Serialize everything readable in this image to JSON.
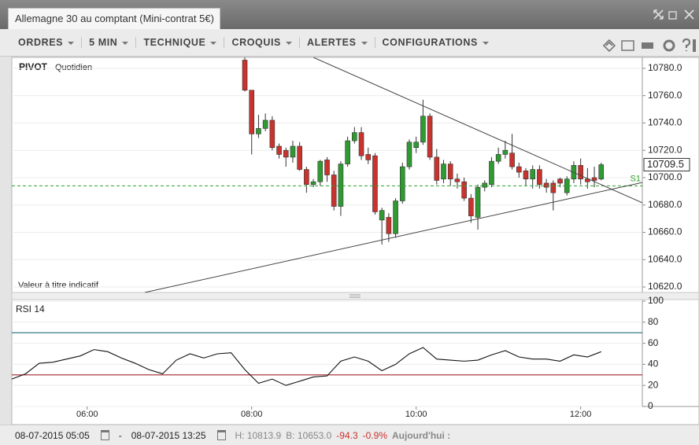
{
  "window": {
    "tab_title": "Allemagne 30 au comptant (Mini-contrat 5€)"
  },
  "toolbar": {
    "items": [
      "ORDRES",
      "5 MIN",
      "TECHNIQUE",
      "CROQUIS",
      "ALERTES",
      "CONFIGURATIONS"
    ]
  },
  "chart_data": [
    {
      "type": "candlestick",
      "legend": "PIVOT",
      "legend_sub": "Quotidien",
      "note": "Valeur à titre indicatif",
      "up_color": "#2f9a32",
      "down_color": "#c8332e",
      "xlim": [
        "05:05",
        "12:45"
      ],
      "ylim": [
        10616,
        10788
      ],
      "yticks": [
        {
          "value": 10620,
          "label": "10620.0"
        },
        {
          "value": 10640,
          "label": "10640.0"
        },
        {
          "value": 10660,
          "label": "10660.0"
        },
        {
          "value": 10680,
          "label": "10680.0"
        },
        {
          "value": 10700,
          "label": "10700.0"
        },
        {
          "value": 10720,
          "label": "10720.0"
        },
        {
          "value": 10740,
          "label": "10740.0"
        },
        {
          "value": 10760,
          "label": "10760.0"
        },
        {
          "value": 10780,
          "label": "10780.0"
        }
      ],
      "grid": true,
      "x": [
        "07:55",
        "08:00",
        "08:05",
        "08:10",
        "08:15",
        "08:20",
        "08:25",
        "08:30",
        "08:35",
        "08:40",
        "08:45",
        "08:50",
        "08:55",
        "09:00",
        "09:05",
        "09:10",
        "09:15",
        "09:20",
        "09:25",
        "09:30",
        "09:35",
        "09:40",
        "09:45",
        "09:50",
        "09:55",
        "10:00",
        "10:05",
        "10:10",
        "10:15",
        "10:20",
        "10:25",
        "10:30",
        "10:35",
        "10:40",
        "10:45",
        "10:50",
        "10:55",
        "11:00",
        "11:05",
        "11:10",
        "11:15",
        "11:20",
        "11:25",
        "11:30",
        "11:35",
        "11:40",
        "11:45",
        "11:50",
        "11:55",
        "12:00",
        "12:05",
        "12:10",
        "12:15"
      ],
      "open": [
        10786,
        10764,
        10732,
        10736,
        10742,
        10723,
        10720,
        10715,
        10723,
        10706,
        10695,
        10697,
        10713,
        10702,
        10679,
        10710,
        10727,
        10733,
        10717,
        10716,
        10669,
        10671,
        10659,
        10683,
        10708,
        10722,
        10726,
        10745,
        10715,
        10699,
        10710,
        10699,
        10697,
        10685,
        10671,
        10693,
        10695,
        10712,
        10717,
        10718,
        10708,
        10705,
        10699,
        10706,
        10696,
        10696,
        10699,
        10689,
        10699,
        10709,
        10699,
        10700,
        10699
      ],
      "high": [
        10788,
        10764,
        10746,
        10747,
        10745,
        10725,
        10722,
        10727,
        10726,
        10708,
        10699,
        10713,
        10715,
        10705,
        10712,
        10730,
        10737,
        10737,
        10722,
        10718,
        10678,
        10674,
        10685,
        10711,
        10728,
        10730,
        10757,
        10747,
        10721,
        10713,
        10712,
        10703,
        10700,
        10688,
        10695,
        10698,
        10715,
        10722,
        10727,
        10732,
        10711,
        10707,
        10709,
        10709,
        10699,
        10698,
        10700,
        10701,
        10712,
        10714,
        10707,
        10708,
        10711
      ],
      "low": [
        10763,
        10717,
        10729,
        10734,
        10720,
        10714,
        10708,
        10711,
        10705,
        10689,
        10693,
        10694,
        10697,
        10676,
        10672,
        10708,
        10725,
        10713,
        10710,
        10673,
        10651,
        10653,
        10656,
        10681,
        10706,
        10718,
        10724,
        10713,
        10695,
        10696,
        10694,
        10692,
        10683,
        10667,
        10662,
        10690,
        10693,
        10710,
        10714,
        10706,
        10700,
        10694,
        10692,
        10692,
        10689,
        10676,
        10693,
        10687,
        10696,
        10695,
        10692,
        10693,
        10698
      ],
      "close": [
        10764,
        10732,
        10736,
        10742,
        10722,
        10717,
        10715,
        10723,
        10706,
        10695,
        10697,
        10712,
        10702,
        10679,
        10710,
        10727,
        10733,
        10716,
        10713,
        10675,
        10676,
        10659,
        10683,
        10708,
        10726,
        10726,
        10745,
        10715,
        10698,
        10710,
        10699,
        10697,
        10685,
        10672,
        10693,
        10696,
        10712,
        10717,
        10720,
        10708,
        10704,
        10699,
        10706,
        10695,
        10693,
        10689,
        10696,
        10699,
        10709,
        10699,
        10697,
        10698,
        10709.5
      ],
      "last_price": 10709.5,
      "pivot_lines": [
        {
          "name": "S1",
          "value": 10694,
          "color": "#2fa12f"
        }
      ],
      "trendlines": [
        {
          "x": [
            "08:45",
            "12:45"
          ],
          "y": [
            10788,
            10681.6
          ],
          "color": "#444444"
        },
        {
          "x": [
            "06:42",
            "12:45"
          ],
          "y": [
            10616,
            10696.5
          ],
          "color": "#444444"
        }
      ]
    },
    {
      "type": "line",
      "title": "RSI 14",
      "color": "#111111",
      "xlim": [
        "05:05",
        "12:45"
      ],
      "ylim": [
        0,
        100
      ],
      "yticks": [
        0,
        20,
        40,
        60,
        80,
        100
      ],
      "xticks": [
        "06:00",
        "08:00",
        "10:00",
        "12:00"
      ],
      "grid": true,
      "bands": [
        {
          "value": 70,
          "color": "#1f6f78"
        },
        {
          "value": 30,
          "color": "#a0262b"
        }
      ],
      "x": [
        "05:05",
        "05:15",
        "05:25",
        "05:35",
        "05:45",
        "05:55",
        "06:05",
        "06:15",
        "06:25",
        "06:35",
        "06:45",
        "06:55",
        "07:05",
        "07:15",
        "07:25",
        "07:35",
        "07:45",
        "07:55",
        "08:05",
        "08:15",
        "08:25",
        "08:35",
        "08:45",
        "08:55",
        "09:05",
        "09:15",
        "09:25",
        "09:35",
        "09:45",
        "09:55",
        "10:05",
        "10:15",
        "10:25",
        "10:35",
        "10:45",
        "10:55",
        "11:05",
        "11:15",
        "11:25",
        "11:35",
        "11:45",
        "11:55",
        "12:05",
        "12:15"
      ],
      "values": [
        26,
        31,
        41,
        42,
        45,
        48,
        54,
        52,
        46,
        41,
        35,
        31,
        44,
        50,
        46,
        50,
        51,
        35,
        22,
        26,
        20,
        24,
        28,
        29,
        43,
        47,
        43,
        34,
        40,
        50,
        56,
        45,
        44,
        43,
        44,
        49,
        53,
        47,
        45,
        45,
        43,
        49,
        47,
        52
      ]
    }
  ],
  "status": {
    "start": "08-07-2015 05:05",
    "sep": "-",
    "end": "08-07-2015 13:25",
    "high": "H: 10813.9",
    "low": "B: 10653.0",
    "change": "-94.3",
    "change_pct": "-0.9%",
    "period": "Aujourd'hui :"
  }
}
